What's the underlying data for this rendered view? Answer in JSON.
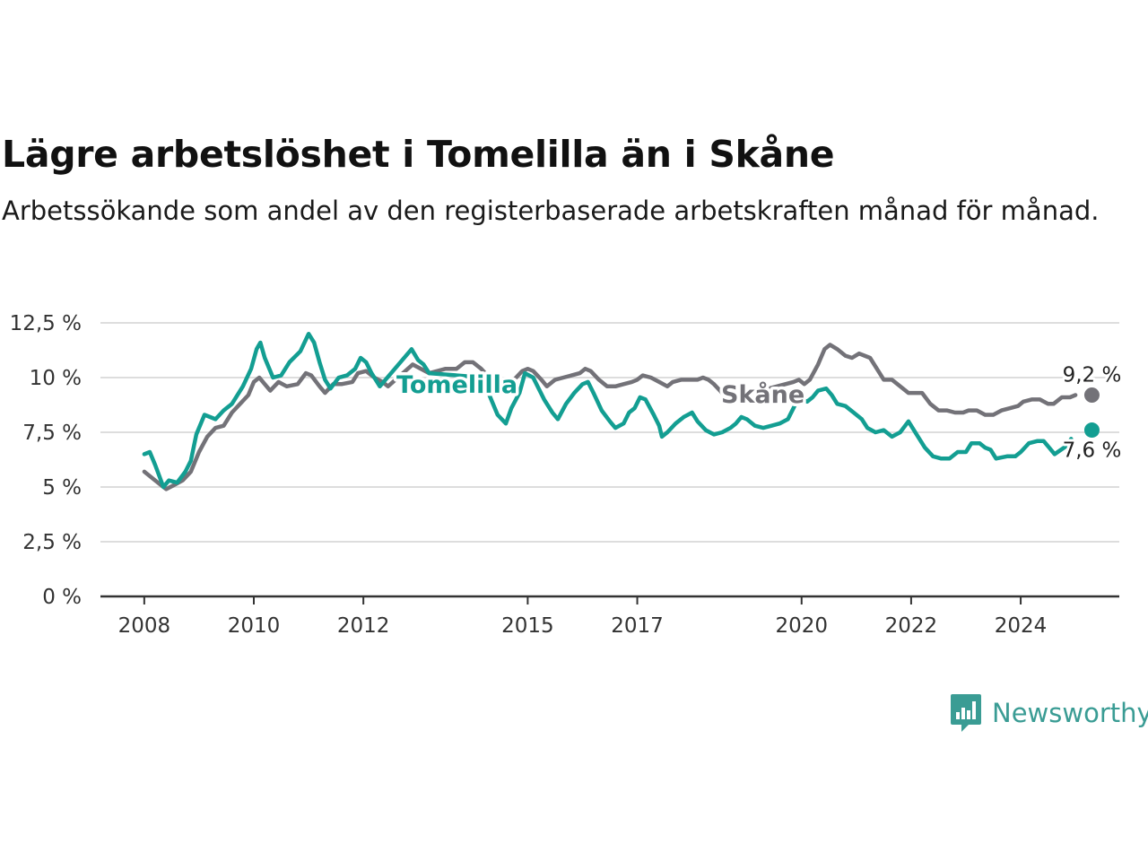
{
  "title": "Lägre arbetslöshet i Tomelilla än i Skåne",
  "subtitle": "Arbetssökande som andel av den registerbaserade arbetskraften månad för månad.",
  "brand": "Newsworthy",
  "colors": {
    "tomelilla": "#139e92",
    "skane": "#737278",
    "grid": "#dddddd",
    "axis": "#333333"
  },
  "chart_data": {
    "type": "line",
    "title": "Lägre arbetslöshet i Tomelilla än i Skåne",
    "subtitle": "Arbetssökande som andel av den registerbaserade arbetskraften månad för månad.",
    "x_ticks": [
      2008,
      2010,
      2012,
      2015,
      2017,
      2020,
      2022,
      2024
    ],
    "x_range": [
      2007.2,
      2025.8
    ],
    "y_ticks": [
      0,
      2.5,
      5,
      7.5,
      10,
      12.5
    ],
    "y_tick_labels": [
      "0 %",
      "2,5 %",
      "5 %",
      "7,5 %",
      "10 %",
      "12,5 %"
    ],
    "ylim": [
      0,
      12.5
    ],
    "grid": true,
    "series": [
      {
        "name": "Tomelilla",
        "end_label": "7,6 %",
        "points": [
          [
            2008.0,
            6.5
          ],
          [
            2008.1,
            6.6
          ],
          [
            2008.2,
            6.0
          ],
          [
            2008.35,
            5.0
          ],
          [
            2008.45,
            5.3
          ],
          [
            2008.6,
            5.2
          ],
          [
            2008.75,
            5.7
          ],
          [
            2008.85,
            6.2
          ],
          [
            2008.95,
            7.4
          ],
          [
            2009.1,
            8.3
          ],
          [
            2009.3,
            8.1
          ],
          [
            2009.45,
            8.5
          ],
          [
            2009.6,
            8.8
          ],
          [
            2009.8,
            9.6
          ],
          [
            2009.95,
            10.4
          ],
          [
            2010.05,
            11.3
          ],
          [
            2010.12,
            11.6
          ],
          [
            2010.2,
            10.9
          ],
          [
            2010.35,
            10.0
          ],
          [
            2010.5,
            10.1
          ],
          [
            2010.65,
            10.7
          ],
          [
            2010.85,
            11.2
          ],
          [
            2011.0,
            12.0
          ],
          [
            2011.1,
            11.6
          ],
          [
            2011.2,
            10.7
          ],
          [
            2011.3,
            9.9
          ],
          [
            2011.4,
            9.5
          ],
          [
            2011.55,
            10.0
          ],
          [
            2011.7,
            10.1
          ],
          [
            2011.85,
            10.4
          ],
          [
            2011.95,
            10.9
          ],
          [
            2012.05,
            10.7
          ],
          [
            2012.15,
            10.2
          ],
          [
            2012.3,
            9.6
          ],
          [
            2012.88,
            11.3
          ],
          [
            2013.0,
            10.8
          ],
          [
            2013.1,
            10.6
          ],
          [
            2013.2,
            10.2
          ],
          [
            2014.2,
            10.0
          ],
          [
            2014.3,
            9.2
          ],
          [
            2014.45,
            8.3
          ],
          [
            2014.6,
            7.9
          ],
          [
            2014.7,
            8.6
          ],
          [
            2014.85,
            9.3
          ],
          [
            2014.95,
            10.2
          ],
          [
            2015.1,
            10.0
          ],
          [
            2015.3,
            9.0
          ],
          [
            2015.45,
            8.4
          ],
          [
            2015.55,
            8.1
          ],
          [
            2015.7,
            8.8
          ],
          [
            2015.85,
            9.3
          ],
          [
            2016.0,
            9.7
          ],
          [
            2016.1,
            9.8
          ],
          [
            2016.2,
            9.3
          ],
          [
            2016.35,
            8.5
          ],
          [
            2016.5,
            8.0
          ],
          [
            2016.6,
            7.7
          ],
          [
            2016.75,
            7.9
          ],
          [
            2016.85,
            8.4
          ],
          [
            2016.95,
            8.6
          ],
          [
            2017.05,
            9.1
          ],
          [
            2017.15,
            9.0
          ],
          [
            2017.3,
            8.3
          ],
          [
            2017.4,
            7.8
          ],
          [
            2017.45,
            7.3
          ],
          [
            2017.55,
            7.5
          ],
          [
            2017.7,
            7.9
          ],
          [
            2017.85,
            8.2
          ],
          [
            2018.0,
            8.4
          ],
          [
            2018.1,
            8.0
          ],
          [
            2018.25,
            7.6
          ],
          [
            2018.4,
            7.4
          ],
          [
            2018.55,
            7.5
          ],
          [
            2018.7,
            7.7
          ],
          [
            2018.8,
            7.9
          ],
          [
            2018.9,
            8.2
          ],
          [
            2019.0,
            8.1
          ],
          [
            2019.15,
            7.8
          ],
          [
            2019.3,
            7.7
          ],
          [
            2019.45,
            7.8
          ],
          [
            2019.6,
            7.9
          ],
          [
            2019.75,
            8.1
          ],
          [
            2019.85,
            8.6
          ],
          [
            2019.95,
            9.1
          ],
          [
            2020.1,
            8.9
          ],
          [
            2020.2,
            9.1
          ],
          [
            2020.3,
            9.4
          ],
          [
            2020.45,
            9.5
          ],
          [
            2020.55,
            9.2
          ],
          [
            2020.65,
            8.8
          ],
          [
            2020.8,
            8.7
          ],
          [
            2020.95,
            8.4
          ],
          [
            2021.1,
            8.1
          ],
          [
            2021.2,
            7.7
          ],
          [
            2021.35,
            7.5
          ],
          [
            2021.5,
            7.6
          ],
          [
            2021.65,
            7.3
          ],
          [
            2021.8,
            7.5
          ],
          [
            2021.95,
            8.0
          ],
          [
            2022.1,
            7.4
          ],
          [
            2022.25,
            6.8
          ],
          [
            2022.4,
            6.4
          ],
          [
            2022.55,
            6.3
          ],
          [
            2022.7,
            6.3
          ],
          [
            2022.85,
            6.6
          ],
          [
            2023.0,
            6.6
          ],
          [
            2023.1,
            7.0
          ],
          [
            2023.25,
            7.0
          ],
          [
            2023.35,
            6.8
          ],
          [
            2023.45,
            6.7
          ],
          [
            2023.55,
            6.3
          ],
          [
            2023.75,
            6.4
          ],
          [
            2023.9,
            6.4
          ],
          [
            2024.0,
            6.6
          ],
          [
            2024.15,
            7.0
          ],
          [
            2024.3,
            7.1
          ],
          [
            2024.42,
            7.1
          ],
          [
            2024.52,
            6.8
          ],
          [
            2024.62,
            6.5
          ],
          [
            2024.85,
            6.9
          ],
          [
            2024.92,
            7.2
          ],
          [
            2025.3,
            7.6
          ]
        ]
      },
      {
        "name": "Skåne",
        "end_label": "9,2 %",
        "points": [
          [
            2008.0,
            5.7
          ],
          [
            2008.15,
            5.4
          ],
          [
            2008.3,
            5.1
          ],
          [
            2008.4,
            4.9
          ],
          [
            2008.55,
            5.1
          ],
          [
            2008.7,
            5.3
          ],
          [
            2008.85,
            5.7
          ],
          [
            2009.0,
            6.6
          ],
          [
            2009.15,
            7.3
          ],
          [
            2009.3,
            7.7
          ],
          [
            2009.45,
            7.8
          ],
          [
            2009.6,
            8.4
          ],
          [
            2009.75,
            8.8
          ],
          [
            2009.9,
            9.2
          ],
          [
            2010.0,
            9.8
          ],
          [
            2010.1,
            10.0
          ],
          [
            2010.2,
            9.7
          ],
          [
            2010.3,
            9.4
          ],
          [
            2010.45,
            9.8
          ],
          [
            2010.6,
            9.6
          ],
          [
            2010.8,
            9.7
          ],
          [
            2010.95,
            10.2
          ],
          [
            2011.05,
            10.1
          ],
          [
            2011.2,
            9.6
          ],
          [
            2011.3,
            9.3
          ],
          [
            2011.45,
            9.7
          ],
          [
            2011.6,
            9.7
          ],
          [
            2011.8,
            9.8
          ],
          [
            2011.9,
            10.2
          ],
          [
            2012.05,
            10.3
          ],
          [
            2012.2,
            10.0
          ],
          [
            2012.35,
            9.8
          ],
          [
            2012.45,
            9.6
          ],
          [
            2012.9,
            10.6
          ],
          [
            2013.05,
            10.4
          ],
          [
            2013.2,
            10.2
          ],
          [
            2013.35,
            10.3
          ],
          [
            2013.5,
            10.4
          ],
          [
            2013.7,
            10.4
          ],
          [
            2013.85,
            10.7
          ],
          [
            2014.0,
            10.7
          ],
          [
            2014.15,
            10.4
          ],
          [
            2014.3,
            10.0
          ],
          [
            2014.45,
            9.9
          ],
          [
            2014.6,
            9.9
          ],
          [
            2014.75,
            9.9
          ],
          [
            2014.9,
            10.3
          ],
          [
            2015.0,
            10.4
          ],
          [
            2015.1,
            10.3
          ],
          [
            2015.25,
            9.9
          ],
          [
            2015.35,
            9.6
          ],
          [
            2015.5,
            9.9
          ],
          [
            2015.65,
            10.0
          ],
          [
            2015.8,
            10.1
          ],
          [
            2015.95,
            10.2
          ],
          [
            2016.05,
            10.4
          ],
          [
            2016.15,
            10.3
          ],
          [
            2016.3,
            9.9
          ],
          [
            2016.45,
            9.6
          ],
          [
            2016.6,
            9.6
          ],
          [
            2016.75,
            9.7
          ],
          [
            2016.9,
            9.8
          ],
          [
            2017.0,
            9.9
          ],
          [
            2017.1,
            10.1
          ],
          [
            2017.25,
            10.0
          ],
          [
            2017.4,
            9.8
          ],
          [
            2017.55,
            9.6
          ],
          [
            2017.65,
            9.8
          ],
          [
            2017.8,
            9.9
          ],
          [
            2017.95,
            9.9
          ],
          [
            2018.1,
            9.9
          ],
          [
            2018.2,
            10.0
          ],
          [
            2018.3,
            9.9
          ],
          [
            2018.4,
            9.7
          ],
          [
            2018.55,
            9.3
          ],
          [
            2018.65,
            9.0
          ],
          [
            2019.85,
            9.8
          ],
          [
            2019.95,
            9.9
          ],
          [
            2020.05,
            9.7
          ],
          [
            2020.15,
            9.9
          ],
          [
            2020.3,
            10.6
          ],
          [
            2020.42,
            11.3
          ],
          [
            2020.52,
            11.5
          ],
          [
            2020.65,
            11.3
          ],
          [
            2020.8,
            11.0
          ],
          [
            2020.92,
            10.9
          ],
          [
            2021.05,
            11.1
          ],
          [
            2021.15,
            11.0
          ],
          [
            2021.25,
            10.9
          ],
          [
            2021.4,
            10.3
          ],
          [
            2021.5,
            9.9
          ],
          [
            2021.65,
            9.9
          ],
          [
            2021.8,
            9.6
          ],
          [
            2021.95,
            9.3
          ],
          [
            2022.05,
            9.3
          ],
          [
            2022.2,
            9.3
          ],
          [
            2022.35,
            8.8
          ],
          [
            2022.5,
            8.5
          ],
          [
            2022.65,
            8.5
          ],
          [
            2022.8,
            8.4
          ],
          [
            2022.95,
            8.4
          ],
          [
            2023.05,
            8.5
          ],
          [
            2023.2,
            8.5
          ],
          [
            2023.35,
            8.3
          ],
          [
            2023.5,
            8.3
          ],
          [
            2023.65,
            8.5
          ],
          [
            2023.8,
            8.6
          ],
          [
            2023.95,
            8.7
          ],
          [
            2024.05,
            8.9
          ],
          [
            2024.2,
            9.0
          ],
          [
            2024.35,
            9.0
          ],
          [
            2024.5,
            8.8
          ],
          [
            2024.6,
            8.8
          ],
          [
            2024.75,
            9.1
          ],
          [
            2024.9,
            9.1
          ],
          [
            2025.0,
            9.2
          ],
          [
            2025.3,
            9.2
          ]
        ]
      }
    ]
  }
}
